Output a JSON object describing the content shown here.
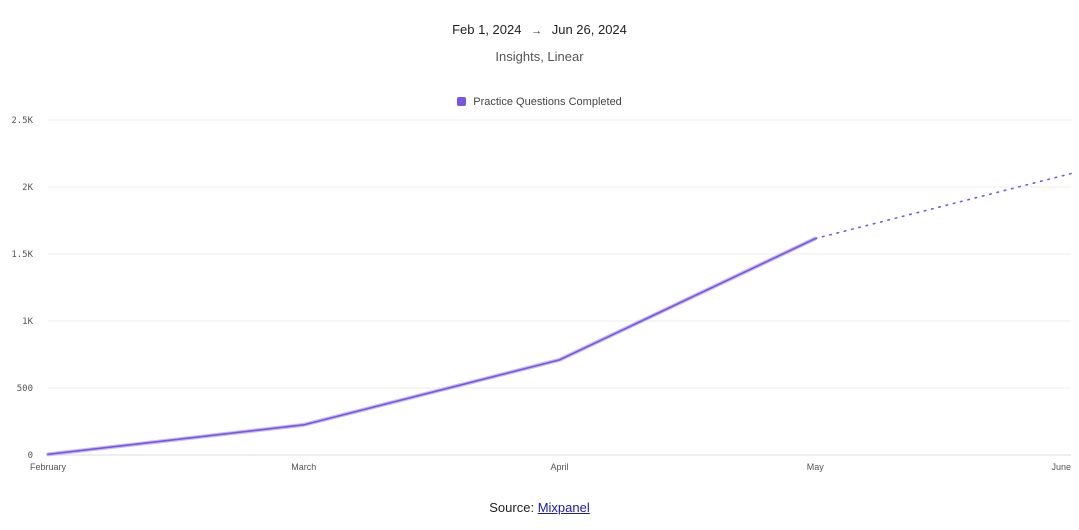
{
  "header": {
    "date_start": "Feb 1, 2024",
    "date_arrow": "→",
    "date_end": "Jun 26, 2024",
    "subtitle": "Insights, Linear"
  },
  "legend": {
    "series_label": "Practice Questions Completed"
  },
  "footer": {
    "source_label": "Source:",
    "source_link": "Mixpanel"
  },
  "colors": {
    "series": "#7856e0",
    "grid": "#ececec"
  },
  "chart_data": {
    "type": "line",
    "title": "Feb 1, 2024 → Jun 26, 2024",
    "subtitle": "Insights, Linear",
    "xlabel": "",
    "ylabel": "",
    "categories": [
      "February",
      "March",
      "April",
      "May",
      "June"
    ],
    "ylim": [
      0,
      2500
    ],
    "yticks": [
      0,
      500,
      1000,
      1500,
      2000,
      2500
    ],
    "ytick_labels": [
      "0",
      "500",
      "1K",
      "1.5K",
      "2K",
      "2.5K"
    ],
    "grid": true,
    "legend_position": "top-center",
    "series": [
      {
        "name": "Practice Questions Completed",
        "values": [
          5,
          225,
          710,
          1615,
          2100
        ],
        "projected_from_index": 3
      }
    ]
  }
}
